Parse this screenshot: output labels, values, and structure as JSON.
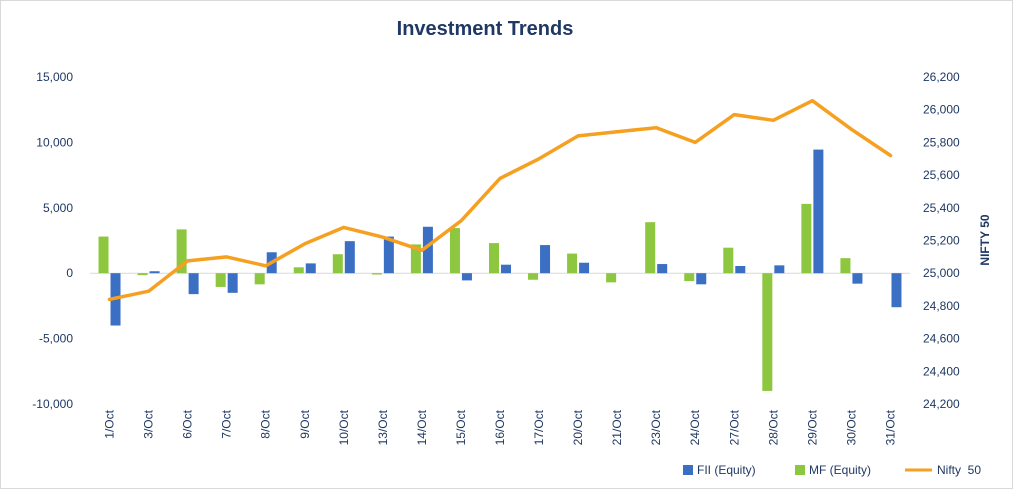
{
  "chart_data": {
    "type": "bar+line",
    "title": "Investment Trends",
    "categories": [
      "1/Oct",
      "3/Oct",
      "6/Oct",
      "7/Oct",
      "8/Oct",
      "9/Oct",
      "10/Oct",
      "13/Oct",
      "14/Oct",
      "15/Oct",
      "16/Oct",
      "17/Oct",
      "20/Oct",
      "21/Oct",
      "23/Oct",
      "24/Oct",
      "27/Oct",
      "28/Oct",
      "29/Oct",
      "30/Oct",
      "31/Oct"
    ],
    "series": [
      {
        "name": "FII (Equity)",
        "type": "bar",
        "axis": "left",
        "color": "#3a6fc4",
        "values": [
          -4000,
          150,
          -1600,
          -1500,
          1600,
          750,
          2450,
          2800,
          3550,
          -550,
          650,
          2150,
          800,
          0,
          700,
          -850,
          550,
          600,
          9450,
          -800,
          -2600
        ]
      },
      {
        "name": "MF (Equity)",
        "type": "bar",
        "axis": "left",
        "color": "#8dc63f",
        "values": [
          2800,
          -150,
          3350,
          -1050,
          -850,
          450,
          1450,
          -100,
          2200,
          3450,
          2300,
          -500,
          1500,
          -700,
          3900,
          -600,
          1950,
          -9000,
          5300,
          1150,
          0
        ]
      },
      {
        "name": "Nifty  50",
        "type": "line",
        "axis": "right",
        "color": "#f5a021",
        "values": [
          24840,
          24890,
          25075,
          25100,
          25045,
          25180,
          25280,
          25220,
          25140,
          25320,
          25580,
          25700,
          25840,
          25865,
          25890,
          25800,
          25970,
          25935,
          26055,
          25880,
          25720
        ]
      }
    ],
    "y_left": {
      "min": -10000,
      "max": 15000,
      "step": 5000,
      "ticks": [
        "-10,000",
        "-5,000",
        "0",
        "5,000",
        "10,000",
        "15,000"
      ]
    },
    "y_right": {
      "min": 24200,
      "max": 26200,
      "step": 200,
      "label": "NIFTY 50",
      "ticks": [
        "24,200",
        "24,400",
        "24,600",
        "24,800",
        "25,000",
        "25,200",
        "25,400",
        "25,600",
        "25,800",
        "26,000",
        "26,200"
      ]
    },
    "legend_position": "bottom-right",
    "grid": false
  }
}
